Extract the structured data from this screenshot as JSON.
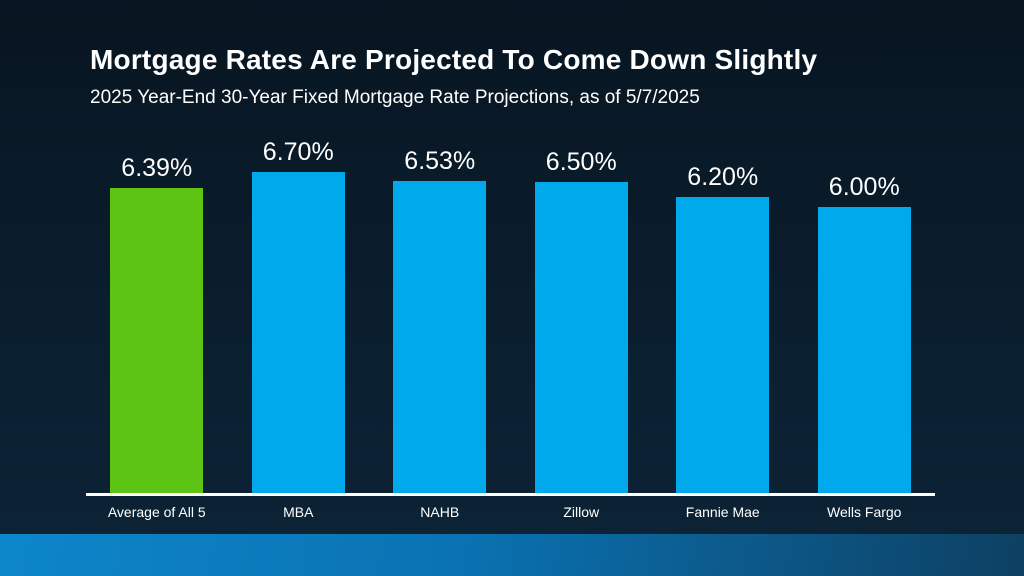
{
  "slide": {
    "title": "Mortgage Rates Are Projected To Come Down Slightly",
    "subtitle": "2025 Year-End 30-Year Fixed Mortgage Rate Projections, as of 5/7/2025"
  },
  "colors": {
    "background_top": "#081521",
    "background_mid": "#0a1e2e",
    "background_bottom": "#0d2437",
    "text": "#ffffff",
    "axis_line": "#ffffff",
    "bar_default": "#00a9ec",
    "bar_highlight": "#5ec414",
    "footer_band_left": "#0d86ca",
    "footer_band_mid": "#0a72b2",
    "footer_band_right": "#0d4062"
  },
  "chart_data": {
    "type": "bar",
    "title": "Mortgage Rates Are Projected To Come Down Slightly",
    "subtitle": "2025 Year-End 30-Year Fixed Mortgage Rate Projections, as of 5/7/2025",
    "categories": [
      "Average of All 5",
      "MBA",
      "NAHB",
      "Zillow",
      "Fannie Mae",
      "Wells Fargo"
    ],
    "values": [
      6.39,
      6.7,
      6.53,
      6.5,
      6.2,
      6.0
    ],
    "value_labels": [
      "6.39%",
      "6.70%",
      "6.53%",
      "6.50%",
      "6.20%",
      "6.00%"
    ],
    "unit": "%",
    "highlight_index": 0,
    "highlight_category": "Average of All 5",
    "data_labels_shown": true,
    "y_axis_ticks_shown": false,
    "gridlines": false,
    "legend": "none",
    "baseline_axis_line": true
  }
}
